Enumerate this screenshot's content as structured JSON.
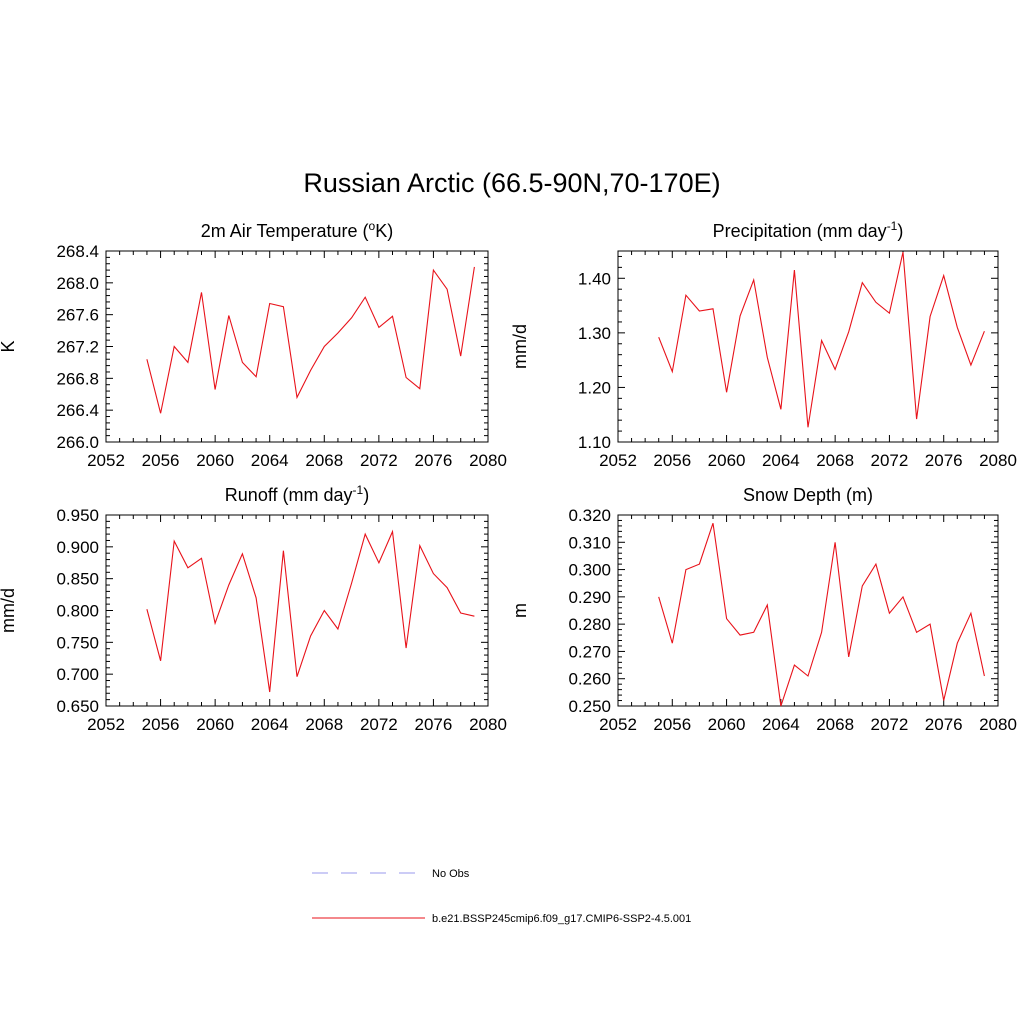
{
  "title": "Russian Arctic (66.5-90N,70-170E)",
  "colors": {
    "series": "#e8121a",
    "obs": "#9999ee",
    "axis": "#000000"
  },
  "legend": [
    {
      "label": "No Obs",
      "style": "dashed",
      "color": "#9999ee"
    },
    {
      "label": "b.e21.BSSP245cmip6.f09_g17.CMIP6-SSP2-4.5.001",
      "style": "solid",
      "color": "#e8121a"
    }
  ],
  "chart_data": [
    {
      "type": "line",
      "title": "2m Air Temperature (",
      "title_sup": "o",
      "title_after": "K)",
      "xlabel": "",
      "ylabel": "K",
      "xlim": [
        2052,
        2080
      ],
      "ylim": [
        266.0,
        268.4
      ],
      "xticks": [
        2052,
        2056,
        2060,
        2064,
        2068,
        2072,
        2076,
        2080
      ],
      "yticks": [
        "266.0",
        "266.4",
        "266.8",
        "267.2",
        "267.6",
        "268.0",
        "268.4"
      ],
      "x": [
        2055,
        2056,
        2057,
        2058,
        2059,
        2060,
        2061,
        2062,
        2063,
        2064,
        2065,
        2066,
        2067,
        2068,
        2069,
        2070,
        2071,
        2072,
        2073,
        2074,
        2075,
        2076,
        2077,
        2078,
        2079
      ],
      "values": [
        267.04,
        266.36,
        267.2,
        267.0,
        267.88,
        266.66,
        267.59,
        267.0,
        266.82,
        267.74,
        267.7,
        266.56,
        266.9,
        267.2,
        267.37,
        267.56,
        267.82,
        267.44,
        267.58,
        266.81,
        266.67,
        268.16,
        267.92,
        267.08,
        268.2
      ]
    },
    {
      "type": "line",
      "title": "Precipitation (mm day",
      "title_sup": "-1",
      "title_after": ")",
      "xlabel": "",
      "ylabel": "mm/d",
      "xlim": [
        2052,
        2080
      ],
      "ylim": [
        1.1,
        1.45
      ],
      "xticks": [
        2052,
        2056,
        2060,
        2064,
        2068,
        2072,
        2076,
        2080
      ],
      "yticks": [
        "1.10",
        "1.20",
        "1.30",
        "1.40"
      ],
      "x": [
        2055,
        2056,
        2057,
        2058,
        2059,
        2060,
        2061,
        2062,
        2063,
        2064,
        2065,
        2066,
        2067,
        2068,
        2069,
        2070,
        2071,
        2072,
        2073,
        2074,
        2075,
        2076,
        2077,
        2078,
        2079
      ],
      "values": [
        1.292,
        1.229,
        1.369,
        1.34,
        1.344,
        1.191,
        1.331,
        1.397,
        1.255,
        1.16,
        1.415,
        1.127,
        1.286,
        1.233,
        1.302,
        1.392,
        1.356,
        1.336,
        1.448,
        1.142,
        1.33,
        1.405,
        1.31,
        1.241,
        1.303
      ]
    },
    {
      "type": "line",
      "title": "Runoff (mm day",
      "title_sup": "-1",
      "title_after": ")",
      "xlabel": "",
      "ylabel": "mm/d",
      "xlim": [
        2052,
        2080
      ],
      "ylim": [
        0.65,
        0.95
      ],
      "xticks": [
        2052,
        2056,
        2060,
        2064,
        2068,
        2072,
        2076,
        2080
      ],
      "yticks": [
        "0.650",
        "0.700",
        "0.750",
        "0.800",
        "0.850",
        "0.900",
        "0.950"
      ],
      "x": [
        2055,
        2056,
        2057,
        2058,
        2059,
        2060,
        2061,
        2062,
        2063,
        2064,
        2065,
        2066,
        2067,
        2068,
        2069,
        2070,
        2071,
        2072,
        2073,
        2074,
        2075,
        2076,
        2077,
        2078,
        2079
      ],
      "values": [
        0.802,
        0.721,
        0.909,
        0.867,
        0.882,
        0.78,
        0.84,
        0.889,
        0.82,
        0.672,
        0.894,
        0.696,
        0.76,
        0.8,
        0.771,
        0.843,
        0.92,
        0.875,
        0.924,
        0.741,
        0.902,
        0.858,
        0.836,
        0.796,
        0.791
      ]
    },
    {
      "type": "line",
      "title": "Snow Depth (m)",
      "title_sup": "",
      "title_after": "",
      "xlabel": "",
      "ylabel": "m",
      "xlim": [
        2052,
        2080
      ],
      "ylim": [
        0.25,
        0.32
      ],
      "xticks": [
        2052,
        2056,
        2060,
        2064,
        2068,
        2072,
        2076,
        2080
      ],
      "yticks": [
        "0.250",
        "0.260",
        "0.270",
        "0.280",
        "0.290",
        "0.300",
        "0.310",
        "0.320"
      ],
      "x": [
        2055,
        2056,
        2057,
        2058,
        2059,
        2060,
        2061,
        2062,
        2063,
        2064,
        2065,
        2066,
        2067,
        2068,
        2069,
        2070,
        2071,
        2072,
        2073,
        2074,
        2075,
        2076,
        2077,
        2078,
        2079
      ],
      "values": [
        0.29,
        0.273,
        0.3,
        0.302,
        0.317,
        0.282,
        0.276,
        0.277,
        0.287,
        0.25,
        0.265,
        0.261,
        0.277,
        0.31,
        0.268,
        0.294,
        0.302,
        0.284,
        0.29,
        0.277,
        0.28,
        0.252,
        0.273,
        0.284,
        0.261
      ]
    }
  ]
}
